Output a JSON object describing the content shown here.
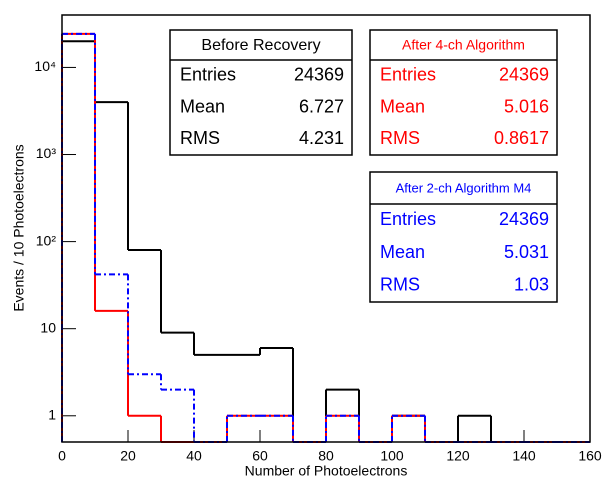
{
  "chart_data": {
    "type": "histogram",
    "xlabel": "Number of Photoelectrons",
    "ylabel": "Events / 10 Photoelectrons",
    "bins": [
      0,
      10,
      20,
      30,
      40,
      50,
      60,
      70,
      80,
      90,
      100,
      110,
      120,
      130,
      140,
      150,
      160
    ],
    "xlim": [
      0,
      160
    ],
    "xticks": [
      0,
      20,
      40,
      60,
      80,
      100,
      120,
      140,
      160
    ],
    "ylim": [
      0.5,
      40000
    ],
    "log_y": true,
    "yticks": [
      1,
      10,
      {
        "value": 100,
        "label": "10²"
      },
      {
        "value": 1000,
        "label": "10³"
      },
      {
        "value": 10000,
        "label": "10⁴"
      }
    ],
    "stat_names": [
      "Entries",
      "Mean",
      "RMS"
    ],
    "series": [
      {
        "name": "Before Recovery",
        "color": "#000000",
        "dash": "none",
        "entries": 24369,
        "mean": 6.727,
        "rms": 4.231,
        "values": [
          20000,
          4000,
          80,
          9,
          5,
          5,
          6,
          0,
          2,
          0,
          1,
          0,
          1,
          0,
          0,
          0
        ]
      },
      {
        "name": "After 4-ch Algorithm",
        "color": "#ff0000",
        "dash": "none",
        "entries": 24369,
        "mean": 5.016,
        "rms": 0.8617,
        "values": [
          24300,
          16,
          1,
          0,
          0,
          1,
          1,
          0,
          1,
          0,
          1,
          0,
          0,
          0,
          0,
          0
        ]
      },
      {
        "name": "After 2-ch Algorithm M4",
        "color": "#0000ff",
        "dash": "6,3,2,3",
        "entries": 24369,
        "mean": 5.031,
        "rms": 1.03,
        "values": [
          24300,
          42,
          3,
          2,
          0,
          1,
          1,
          0,
          1,
          0,
          1,
          0,
          0,
          0,
          0,
          0
        ]
      }
    ]
  }
}
